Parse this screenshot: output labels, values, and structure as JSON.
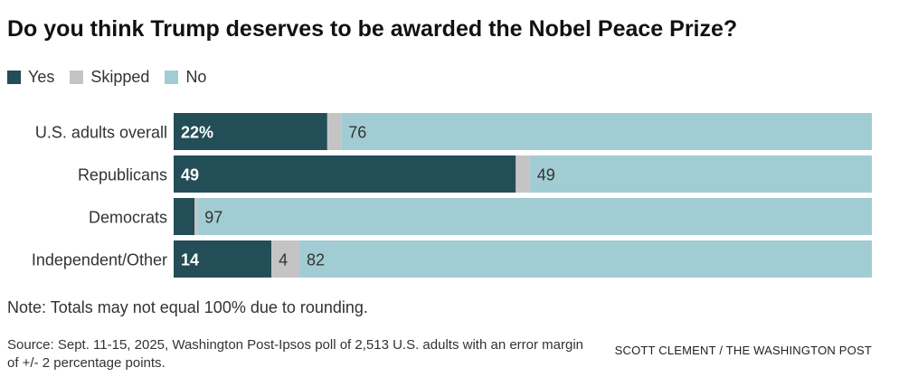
{
  "title": "Do you think Trump deserves to be awarded the Nobel Peace Prize?",
  "legend": [
    {
      "label": "Yes",
      "color": "#234d57"
    },
    {
      "label": "Skipped",
      "color": "#c4c4c4"
    },
    {
      "label": "No",
      "color": "#a2ccd3"
    }
  ],
  "chart_data": {
    "type": "bar",
    "orientation": "horizontal",
    "stacked": true,
    "title": "Do you think Trump deserves to be awarded the Nobel Peace Prize?",
    "categories": [
      "U.S. adults overall",
      "Republicans",
      "Democrats",
      "Independent/Other"
    ],
    "series": [
      {
        "name": "Yes",
        "color": "#234d57",
        "values": [
          22,
          49,
          3,
          14
        ],
        "labels": [
          "22%",
          "49",
          "",
          "14"
        ]
      },
      {
        "name": "Skipped",
        "color": "#c4c4c4",
        "values": [
          2,
          2,
          0.4,
          4
        ],
        "labels": [
          "",
          "",
          "",
          "4"
        ]
      },
      {
        "name": "No",
        "color": "#a2ccd3",
        "values": [
          76,
          49,
          97,
          82
        ],
        "labels": [
          "76",
          "49",
          "97",
          "82"
        ]
      }
    ],
    "xlim": [
      0,
      100
    ],
    "legend_position": "top-left"
  },
  "note": "Note: Totals may not equal 100% due to rounding.",
  "source": "Source: Sept. 11-15, 2025, Washington Post-Ipsos poll of 2,513 U.S. adults with an error margin of +/- 2 percentage points.",
  "credit": "SCOTT CLEMENT / THE WASHINGTON POST"
}
